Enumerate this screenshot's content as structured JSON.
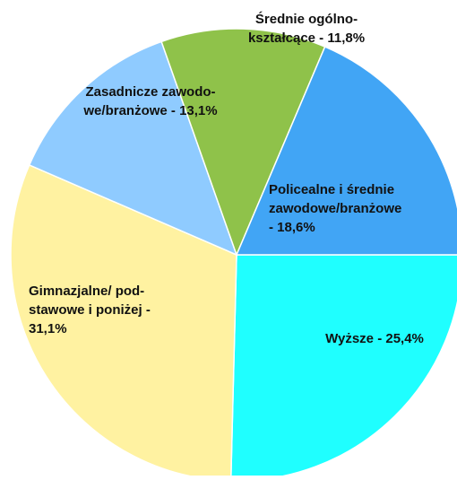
{
  "chart_data": {
    "type": "pie",
    "values": [
      25.4,
      31.1,
      13.1,
      11.8,
      18.6
    ],
    "value_labels": [
      [
        "Wyższe - 25,4%"
      ],
      [
        "Gimnazjalne/ pod-",
        "stawowe i poniżej -",
        "31,1%"
      ],
      [
        "Zasadnicze zawodo-",
        "we/branżowe - 13,1%"
      ],
      [
        "Średnie ogólno-",
        "kształcące - 11,8%"
      ],
      [
        "Policealne i średnie",
        "zawodowe/branżowe",
        "- 18,6%"
      ]
    ],
    "colors": [
      "#1fffff",
      "#fff2a1",
      "#8fcbff",
      "#8fc24a",
      "#41a5f5"
    ]
  }
}
